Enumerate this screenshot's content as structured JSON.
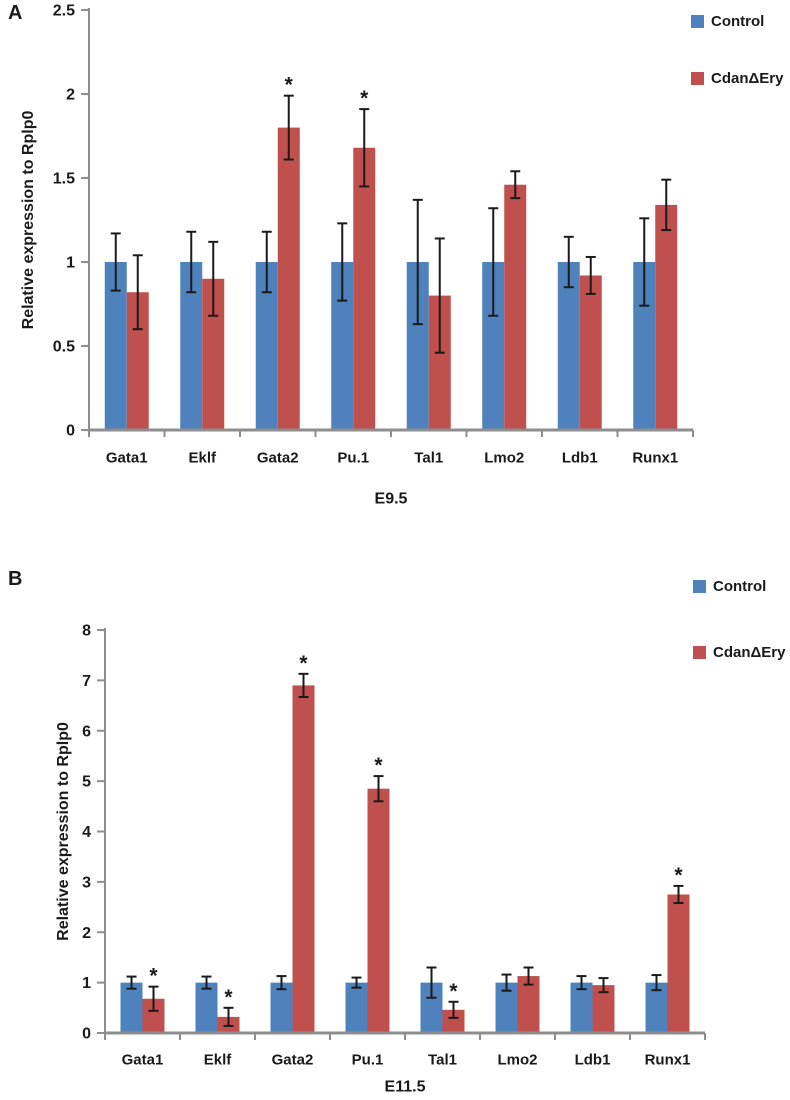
{
  "legend": {
    "items": [
      {
        "label": "Control",
        "color": "#4F81BD",
        "icon": "legend-swatch-square"
      },
      {
        "label": "CdanΔEry",
        "color": "#C0504D",
        "icon": "legend-swatch-square"
      }
    ]
  },
  "chart_data": [
    {
      "type": "bar",
      "panel_label": "A",
      "title": "",
      "xlabel": "E9.5",
      "ylabel": "Relative expression to Rplp0",
      "ylim": [
        0,
        2.5
      ],
      "yticks": [
        "0",
        "0.5",
        "1",
        "1.5",
        "2",
        "2.5"
      ],
      "grid": false,
      "legend_position": "top-right",
      "sig_marker": "*",
      "categories": [
        "Gata1",
        "Eklf",
        "Gata2",
        "Pu.1",
        "Tal1",
        "Lmo2",
        "Ldb1",
        "Runx1"
      ],
      "series": [
        {
          "name": "Control",
          "color": "#4F81BD",
          "values": [
            1.0,
            1.0,
            1.0,
            1.0,
            1.0,
            1.0,
            1.0,
            1.0
          ],
          "errors": [
            0.17,
            0.18,
            0.18,
            0.23,
            0.37,
            0.32,
            0.15,
            0.26
          ],
          "sig": [
            "",
            "",
            "",
            "",
            "",
            "",
            "",
            ""
          ]
        },
        {
          "name": "CdanΔEry",
          "color": "#C0504D",
          "values": [
            0.82,
            0.9,
            1.8,
            1.68,
            0.8,
            1.46,
            0.92,
            1.34
          ],
          "errors": [
            0.22,
            0.22,
            0.19,
            0.23,
            0.34,
            0.08,
            0.11,
            0.15
          ],
          "sig": [
            "",
            "",
            "*",
            "*",
            "",
            "",
            "",
            ""
          ]
        }
      ]
    },
    {
      "type": "bar",
      "panel_label": "B",
      "title": "",
      "xlabel": "E11.5",
      "ylabel": "Relative expression to Rplp0",
      "ylim": [
        0,
        8
      ],
      "yticks": [
        "0",
        "1",
        "2",
        "3",
        "4",
        "5",
        "6",
        "7",
        "8"
      ],
      "grid": false,
      "legend_position": "top-right",
      "sig_marker": "*",
      "categories": [
        "Gata1",
        "Eklf",
        "Gata2",
        "Pu.1",
        "Tal1",
        "Lmo2",
        "Ldb1",
        "Runx1"
      ],
      "series": [
        {
          "name": "Control",
          "color": "#4F81BD",
          "values": [
            1.0,
            1.0,
            1.0,
            1.0,
            1.0,
            1.0,
            1.0,
            1.0
          ],
          "errors": [
            0.12,
            0.12,
            0.13,
            0.1,
            0.3,
            0.16,
            0.13,
            0.15
          ],
          "sig": [
            "",
            "",
            "",
            "",
            "",
            "",
            "",
            ""
          ]
        },
        {
          "name": "CdanΔEry",
          "color": "#C0504D",
          "values": [
            0.68,
            0.32,
            6.9,
            4.85,
            0.46,
            1.13,
            0.95,
            2.75
          ],
          "errors": [
            0.24,
            0.18,
            0.23,
            0.25,
            0.16,
            0.17,
            0.14,
            0.17
          ],
          "sig": [
            "*",
            "*",
            "*",
            "*",
            "*",
            "",
            "",
            "*"
          ]
        }
      ]
    }
  ]
}
